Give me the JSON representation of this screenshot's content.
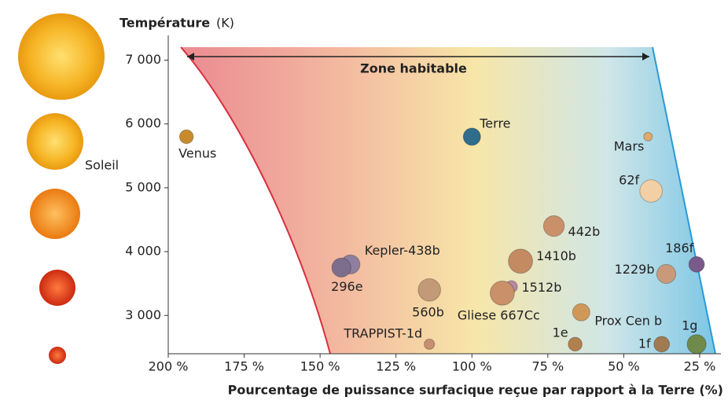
{
  "chart_data": {
    "type": "bubble",
    "y_label": "Température",
    "y_unit": "(K)",
    "x_label": "Pourcentage de puissance surfacique reçue par rapport à la Terre (%)",
    "zone_label": "Zone habitable",
    "star_label": "Soleil",
    "xlim": [
      200,
      18
    ],
    "ylim": [
      2400,
      7400
    ],
    "xticks": [
      {
        "value": 200,
        "label": "200 %"
      },
      {
        "value": 175,
        "label": "175 %"
      },
      {
        "value": 150,
        "label": "150 %"
      },
      {
        "value": 125,
        "label": "125 %"
      },
      {
        "value": 100,
        "label": "100 %"
      },
      {
        "value": 75,
        "label": "75 %"
      },
      {
        "value": 50,
        "label": "50 %"
      },
      {
        "value": 25,
        "label": "25 %"
      }
    ],
    "yticks": [
      {
        "value": 7000,
        "label": "7 000"
      },
      {
        "value": 6000,
        "label": "6 000"
      },
      {
        "value": 5000,
        "label": "5 000"
      },
      {
        "value": 4000,
        "label": "4 000"
      },
      {
        "value": 3000,
        "label": "3 000"
      }
    ],
    "points": [
      {
        "name": "Venus",
        "x": 194,
        "y": 5800,
        "size": 0.8,
        "color": "#c98a2e"
      },
      {
        "name": "Terre",
        "x": 100,
        "y": 5800,
        "size": 1,
        "color": "#2f6d8a"
      },
      {
        "name": "Mars",
        "x": 42,
        "y": 5800,
        "size": 0.5,
        "color": "#e0a86a"
      },
      {
        "name": "62f",
        "x": 41,
        "y": 4950,
        "size": 1.3,
        "color": "#f2cfa4"
      },
      {
        "name": "442b",
        "x": 73,
        "y": 4400,
        "size": 1.2,
        "color": "#c9906a"
      },
      {
        "name": "1410b",
        "x": 84,
        "y": 3850,
        "size": 1.4,
        "color": "#c48a62"
      },
      {
        "name": "1512b",
        "x": 87,
        "y": 3450,
        "size": 0.7,
        "color": "#b58aa0"
      },
      {
        "name": "Gliese 667Cc",
        "x": 90,
        "y": 3350,
        "size": 1.4,
        "color": "#c9906a"
      },
      {
        "name": "Kepler-438b",
        "x": 140,
        "y": 3800,
        "size": 1.1,
        "color": "#8f7f9e"
      },
      {
        "name": "296e",
        "x": 143,
        "y": 3750,
        "size": 1.1,
        "color": "#7d6e8e"
      },
      {
        "name": "560b",
        "x": 114,
        "y": 3400,
        "size": 1.3,
        "color": "#c29a78"
      },
      {
        "name": "TRAPPIST-1d",
        "x": 114,
        "y": 2550,
        "size": 0.6,
        "color": "#c49070"
      },
      {
        "name": "1e",
        "x": 66,
        "y": 2550,
        "size": 0.8,
        "color": "#b0804e"
      },
      {
        "name": "Prox Cen b",
        "x": 64,
        "y": 3050,
        "size": 1,
        "color": "#d09858"
      },
      {
        "name": "1229b",
        "x": 36,
        "y": 3650,
        "size": 1.1,
        "color": "#c99a7a"
      },
      {
        "name": "186f",
        "x": 26,
        "y": 3800,
        "size": 0.9,
        "color": "#7a5a8a"
      },
      {
        "name": "1f",
        "x": 37.5,
        "y": 2550,
        "size": 0.9,
        "color": "#a07a50"
      },
      {
        "name": "1g",
        "x": 26,
        "y": 2550,
        "size": 1.1,
        "color": "#6f8a4a"
      }
    ]
  }
}
